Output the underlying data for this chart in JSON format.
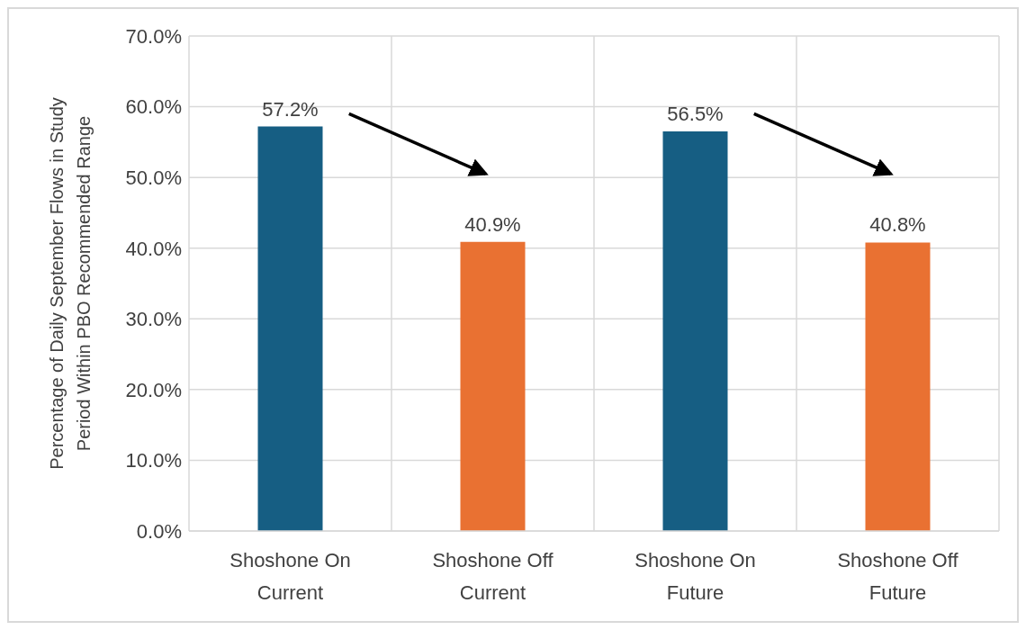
{
  "chart_data": {
    "type": "bar",
    "ylabel": "Percentage of Daily September Flows in Study\nPeriod Within PBO Recommended Range",
    "categories": [
      "Shoshone On Current",
      "Shoshone Off Current",
      "Shoshone On Future",
      "Shoshone Off Future"
    ],
    "values": [
      57.2,
      40.9,
      56.5,
      40.8
    ],
    "colors": [
      "#165e83",
      "#e97132",
      "#165e83",
      "#e97132"
    ],
    "value_labels": [
      "57.2%",
      "40.9%",
      "56.5%",
      "40.8%"
    ],
    "ylim": [
      0,
      70
    ],
    "yticks": [
      {
        "value": 0,
        "label": "0.0%"
      },
      {
        "value": 10,
        "label": "10.0%"
      },
      {
        "value": 20,
        "label": "20.0%"
      },
      {
        "value": 30,
        "label": "30.0%"
      },
      {
        "value": 40,
        "label": "40.0%"
      },
      {
        "value": 50,
        "label": "50.0%"
      },
      {
        "value": 60,
        "label": "60.0%"
      },
      {
        "value": 70,
        "label": "70.0%"
      }
    ],
    "grid": true
  }
}
